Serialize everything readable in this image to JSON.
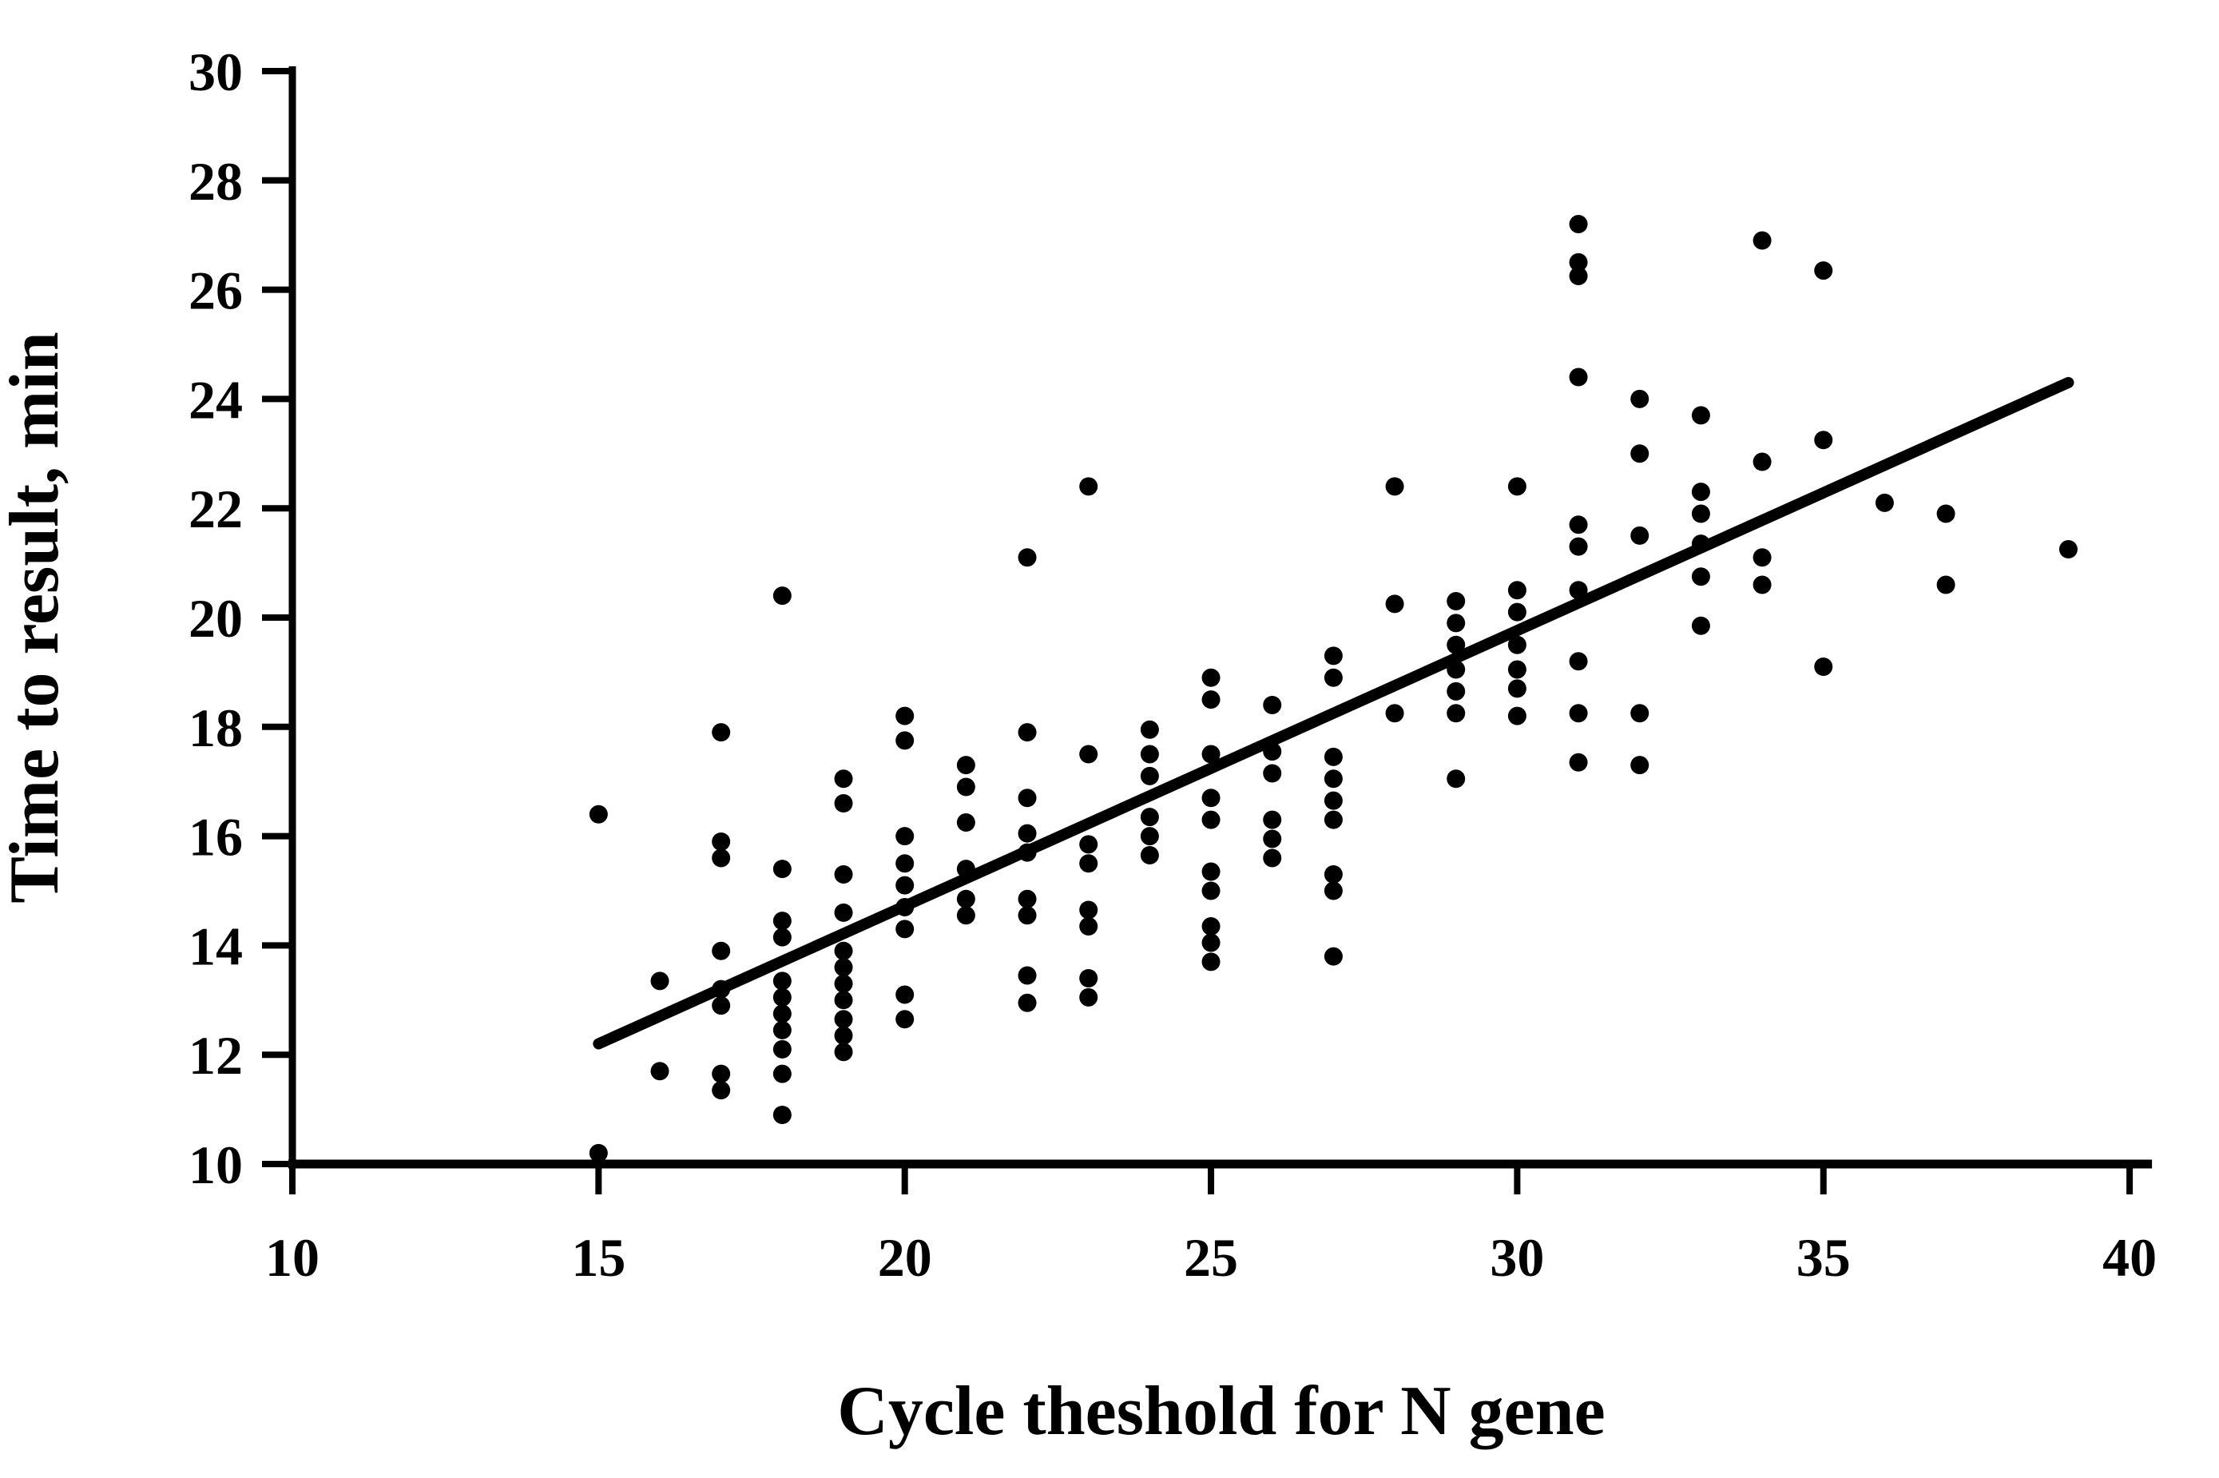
{
  "chart_data": {
    "type": "scatter",
    "title": "",
    "xlabel": "Cycle theshold for N gene",
    "ylabel": "Time to result, min",
    "x_ticks": [
      10,
      15,
      20,
      25,
      30,
      35,
      40
    ],
    "y_ticks": [
      10,
      12,
      14,
      16,
      18,
      20,
      22,
      24,
      26,
      28,
      30
    ],
    "xlim": [
      10,
      40
    ],
    "ylim": [
      10,
      30
    ],
    "grid": false,
    "legend": "none",
    "marker_color": "#000000",
    "axis_color": "#000000",
    "background_color": "#ffffff",
    "points": [
      [
        15,
        16.4
      ],
      [
        15,
        10.2
      ],
      [
        16,
        13.35
      ],
      [
        16,
        11.7
      ],
      [
        17,
        17.9
      ],
      [
        17,
        15.9
      ],
      [
        17,
        15.6
      ],
      [
        17,
        13.9
      ],
      [
        17,
        13.2
      ],
      [
        17,
        12.9
      ],
      [
        17,
        11.65
      ],
      [
        17,
        11.35
      ],
      [
        18,
        20.4
      ],
      [
        18,
        15.4
      ],
      [
        18,
        14.45
      ],
      [
        18,
        14.15
      ],
      [
        18,
        13.35
      ],
      [
        18,
        13.05
      ],
      [
        18,
        12.75
      ],
      [
        18,
        12.45
      ],
      [
        18,
        12.1
      ],
      [
        18,
        11.65
      ],
      [
        18,
        10.9
      ],
      [
        19,
        17.05
      ],
      [
        19,
        16.6
      ],
      [
        19,
        15.3
      ],
      [
        19,
        14.6
      ],
      [
        19,
        13.9
      ],
      [
        19,
        13.6
      ],
      [
        19,
        13.3
      ],
      [
        19,
        13.0
      ],
      [
        19,
        12.65
      ],
      [
        19,
        12.35
      ],
      [
        19,
        12.05
      ],
      [
        20,
        18.2
      ],
      [
        20,
        17.75
      ],
      [
        20,
        16.0
      ],
      [
        20,
        15.5
      ],
      [
        20,
        15.1
      ],
      [
        20,
        14.7
      ],
      [
        20,
        14.3
      ],
      [
        20,
        13.1
      ],
      [
        20,
        12.65
      ],
      [
        21,
        17.3
      ],
      [
        21,
        16.9
      ],
      [
        21,
        16.25
      ],
      [
        21,
        15.4
      ],
      [
        21,
        14.85
      ],
      [
        21,
        14.55
      ],
      [
        22,
        21.1
      ],
      [
        22,
        17.9
      ],
      [
        22,
        16.7
      ],
      [
        22,
        16.05
      ],
      [
        22,
        15.7
      ],
      [
        22,
        14.85
      ],
      [
        22,
        14.55
      ],
      [
        22,
        13.45
      ],
      [
        22,
        12.95
      ],
      [
        23,
        22.4
      ],
      [
        23,
        17.5
      ],
      [
        23,
        15.85
      ],
      [
        23,
        15.5
      ],
      [
        23,
        14.65
      ],
      [
        23,
        14.35
      ],
      [
        23,
        13.4
      ],
      [
        23,
        13.05
      ],
      [
        24,
        17.95
      ],
      [
        24,
        17.5
      ],
      [
        24,
        17.1
      ],
      [
        24,
        16.35
      ],
      [
        24,
        16.0
      ],
      [
        24,
        15.65
      ],
      [
        25,
        18.9
      ],
      [
        25,
        18.5
      ],
      [
        25,
        17.5
      ],
      [
        25,
        16.7
      ],
      [
        25,
        16.3
      ],
      [
        25,
        15.35
      ],
      [
        25,
        15.0
      ],
      [
        25,
        14.35
      ],
      [
        25,
        14.05
      ],
      [
        25,
        13.7
      ],
      [
        26,
        18.4
      ],
      [
        26,
        17.55
      ],
      [
        26,
        17.15
      ],
      [
        26,
        16.3
      ],
      [
        26,
        15.95
      ],
      [
        26,
        15.6
      ],
      [
        27,
        19.3
      ],
      [
        27,
        18.9
      ],
      [
        27,
        17.45
      ],
      [
        27,
        17.05
      ],
      [
        27,
        16.65
      ],
      [
        27,
        16.3
      ],
      [
        27,
        15.3
      ],
      [
        27,
        15.0
      ],
      [
        27,
        13.8
      ],
      [
        28,
        22.4
      ],
      [
        28,
        20.25
      ],
      [
        28,
        18.25
      ],
      [
        29,
        20.3
      ],
      [
        29,
        19.9
      ],
      [
        29,
        19.5
      ],
      [
        29,
        19.05
      ],
      [
        29,
        18.65
      ],
      [
        29,
        18.25
      ],
      [
        29,
        17.05
      ],
      [
        30,
        22.4
      ],
      [
        30,
        20.5
      ],
      [
        30,
        20.1
      ],
      [
        30,
        19.5
      ],
      [
        30,
        19.05
      ],
      [
        30,
        18.7
      ],
      [
        30,
        18.2
      ],
      [
        31,
        27.2
      ],
      [
        31,
        26.5
      ],
      [
        31,
        26.25
      ],
      [
        31,
        24.4
      ],
      [
        31,
        21.7
      ],
      [
        31,
        21.3
      ],
      [
        31,
        20.5
      ],
      [
        31,
        19.2
      ],
      [
        31,
        18.25
      ],
      [
        31,
        17.35
      ],
      [
        32,
        24.0
      ],
      [
        32,
        23.0
      ],
      [
        32,
        21.5
      ],
      [
        32,
        18.25
      ],
      [
        32,
        17.3
      ],
      [
        33,
        23.7
      ],
      [
        33,
        22.3
      ],
      [
        33,
        21.9
      ],
      [
        33,
        21.35
      ],
      [
        33,
        20.75
      ],
      [
        33,
        19.85
      ],
      [
        34,
        26.9
      ],
      [
        34,
        22.85
      ],
      [
        34,
        21.1
      ],
      [
        34,
        20.6
      ],
      [
        35,
        26.35
      ],
      [
        35,
        23.25
      ],
      [
        35,
        19.1
      ],
      [
        36,
        22.1
      ],
      [
        37,
        21.9
      ],
      [
        37,
        20.6
      ],
      [
        39,
        21.25
      ]
    ],
    "trendline": {
      "x1": 15,
      "y1": 12.2,
      "x2": 39,
      "y2": 24.3
    }
  }
}
